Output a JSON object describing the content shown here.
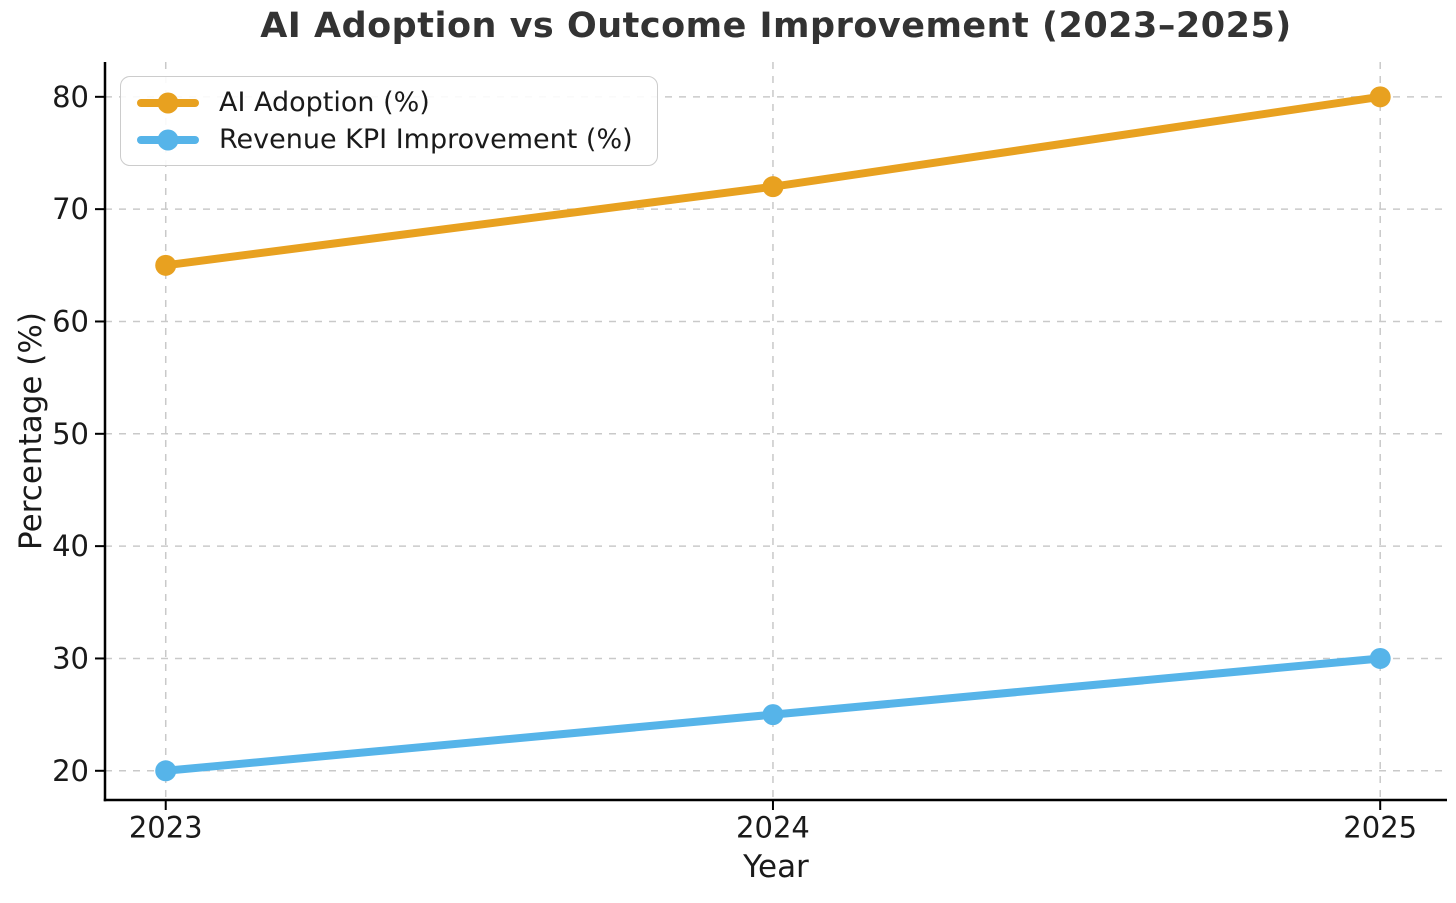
{
  "figure": {
    "title": "AI Adoption vs Outcome Improvement (2023–2025)",
    "background_color": "#ffffff"
  },
  "chart_data": {
    "type": "line",
    "title": "AI Adoption vs Outcome Improvement (2023–2025)",
    "xlabel": "Year",
    "ylabel": "Percentage (%)",
    "x": [
      2023,
      2024,
      2025
    ],
    "x_tick_labels": [
      "2023",
      "2024",
      "2025"
    ],
    "y_ticks": [
      20,
      30,
      40,
      50,
      60,
      70,
      80
    ],
    "series": [
      {
        "name": "AI Adoption (%)",
        "values": [
          65,
          72,
          80
        ],
        "color": "#E8A120",
        "marker": "circle"
      },
      {
        "name": "Revenue KPI Improvement (%)",
        "values": [
          20,
          25,
          30
        ],
        "color": "#56B4E9",
        "marker": "circle"
      }
    ],
    "xlim": [
      2022.9,
      2025.11
    ],
    "ylim": [
      17.4,
      83.1
    ],
    "grid": true,
    "grid_style": "dashed",
    "legend_position": "upper left",
    "colors": {
      "grid": "#c9c9c9",
      "spine": "#000000",
      "tick_text": "#1a1a1a",
      "title_text": "#333333",
      "legend_border": "#cccccc",
      "legend_background": "#ffffff"
    }
  }
}
